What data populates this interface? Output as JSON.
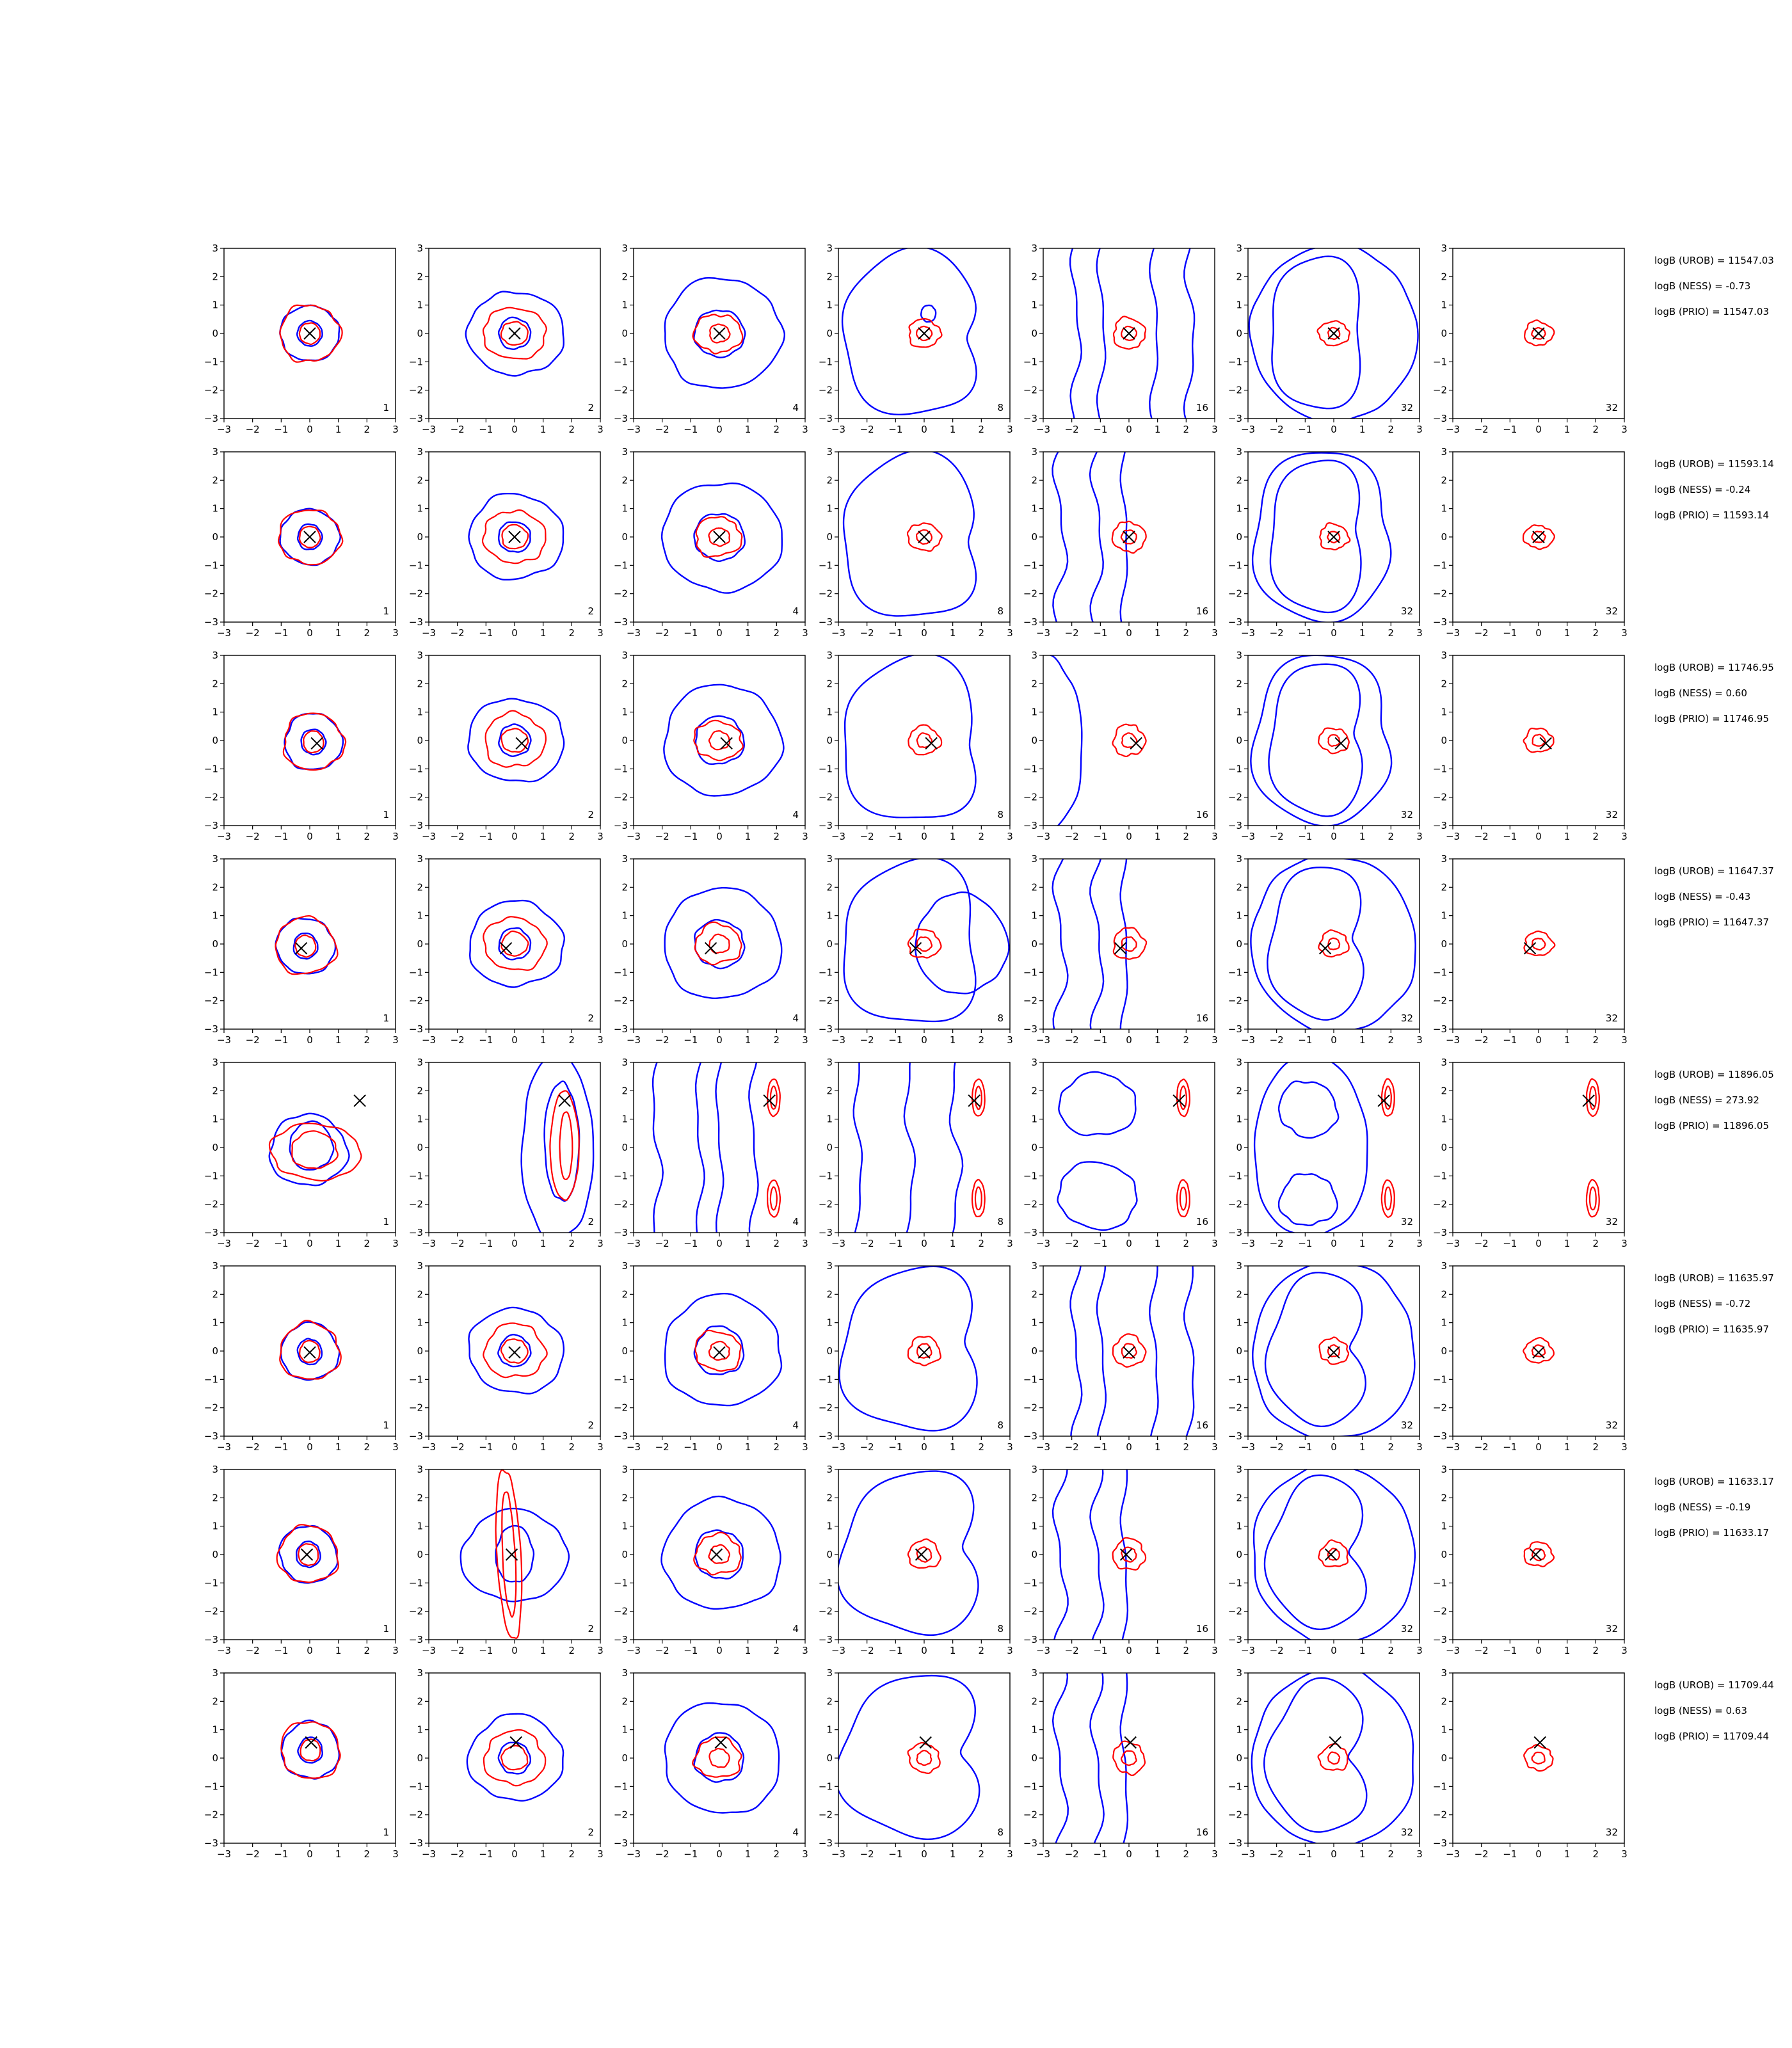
{
  "chart_data": {
    "type": "contour",
    "grid": {
      "rows": 8,
      "cols": 7
    },
    "xlim": [
      -3,
      3
    ],
    "ylim": [
      -3,
      3
    ],
    "xticks": [
      -3,
      -2,
      -1,
      0,
      1,
      2,
      3
    ],
    "yticks": [
      -3,
      -2,
      -1,
      0,
      1,
      2,
      3
    ],
    "col_labels": [
      "1",
      "2",
      "4",
      "8",
      "16",
      "32",
      "32"
    ],
    "colors": {
      "blue": "#0000ff",
      "red": "#ff0000",
      "marker": "#000000"
    },
    "rows": [
      {
        "marker": [
          0.0,
          0.0
        ],
        "uro": "logB (UROB) = 11547.03",
        "ness": "logB (NESS) = -0.73",
        "prio": "logB (PRIO) = 11547.03"
      },
      {
        "marker": [
          0.0,
          0.0
        ],
        "uro": "logB (UROB) = 11593.14",
        "ness": "logB (NESS) = -0.24",
        "prio": "logB (PRIO) = 11593.14"
      },
      {
        "marker": [
          0.25,
          -0.1
        ],
        "uro": "logB (UROB) = 11746.95",
        "ness": "logB (NESS) = 0.60",
        "prio": "logB (PRIO) = 11746.95"
      },
      {
        "marker": [
          -0.3,
          -0.15
        ],
        "uro": "logB (UROB) = 11647.37",
        "ness": "logB (NESS) = -0.43",
        "prio": "logB (PRIO) = 11647.37"
      },
      {
        "marker": [
          1.75,
          1.65
        ],
        "uro": "logB (UROB) = 11896.05",
        "ness": "logB (NESS) = 273.92",
        "prio": "logB (PRIO) = 11896.05"
      },
      {
        "marker": [
          0.0,
          -0.05
        ],
        "uro": "logB (UROB) = 11635.97",
        "ness": "logB (NESS) = -0.72",
        "prio": "logB (PRIO) = 11635.97"
      },
      {
        "marker": [
          -0.1,
          0.0
        ],
        "uro": "logB (UROB) = 11633.17",
        "ness": "logB (NESS) = -0.19",
        "prio": "logB (PRIO) = 11633.17"
      },
      {
        "marker": [
          0.05,
          0.55
        ],
        "uro": "logB (UROB) = 11709.44",
        "ness": "logB (NESS) = 0.63",
        "prio": "logB (PRIO) = 11709.44"
      }
    ]
  }
}
